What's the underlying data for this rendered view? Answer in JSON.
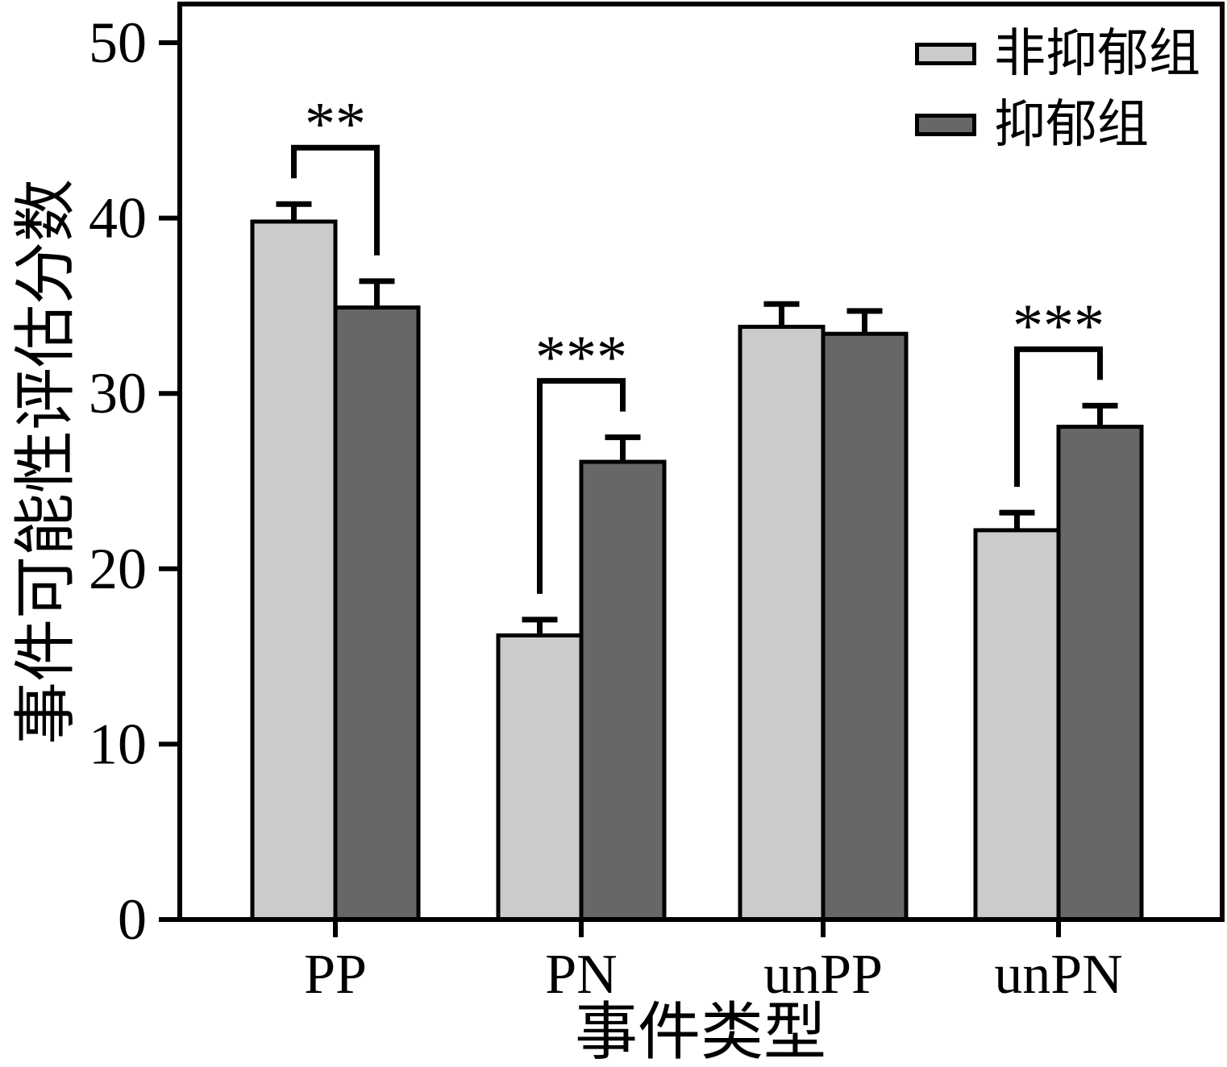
{
  "chart_data": {
    "type": "bar",
    "categories": [
      "PP",
      "PN",
      "unPP",
      "unPN"
    ],
    "series": [
      {
        "name": "非抑郁组",
        "color": "#cbcbcb",
        "values": [
          39.8,
          16.2,
          33.8,
          22.2
        ],
        "errors": [
          1.0,
          0.9,
          1.3,
          1.0
        ]
      },
      {
        "name": "抑郁组",
        "color": "#676767",
        "values": [
          34.9,
          26.1,
          33.4,
          28.1
        ],
        "errors": [
          1.5,
          1.4,
          1.3,
          1.2
        ]
      }
    ],
    "title": "",
    "xlabel": "事件类型",
    "ylabel": "事件可能性评估分数",
    "ylim": [
      0,
      50
    ],
    "yticks": [
      0,
      10,
      20,
      30,
      40,
      50
    ],
    "grid": false,
    "legend_position": "top-right",
    "bar_edge_color": "#000000",
    "error_bars": "upper-cap-only",
    "significance": [
      {
        "category": "PP",
        "label": "**"
      },
      {
        "category": "PN",
        "label": "***"
      },
      {
        "category": "unPN",
        "label": "***"
      }
    ]
  }
}
